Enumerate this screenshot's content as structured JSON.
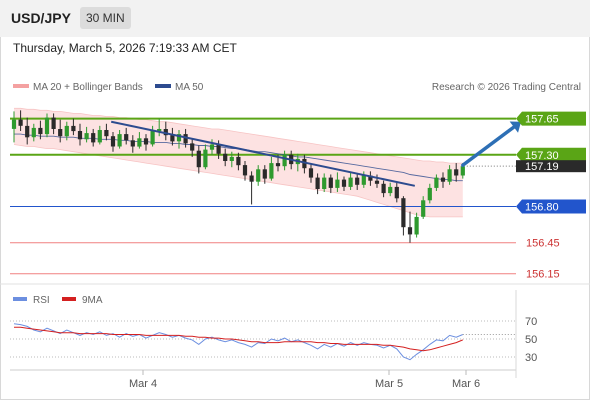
{
  "header": {
    "symbol": "USD/JPY",
    "timeframe": "30 MIN",
    "timestamp": "Thursday, March 5, 2026 7:19:33 AM CET"
  },
  "credit": "Research © 2026 Trading Central",
  "colors": {
    "bull": "#2e9a2e",
    "bear": "#2a2a2a",
    "ma20": "#f4a1a1",
    "ma50": "#2d4b8f",
    "band": "#fde2e2",
    "resistance": "#5aa516",
    "pivot": "#2255cc",
    "support": "#f08080",
    "arrow": "#2d6fb5",
    "rsi": "#6c8fe0",
    "rsi_ma": "#d42020"
  },
  "chart_data": [
    {
      "type": "candlestick",
      "legend": [
        {
          "name": "MA 20 + Bollinger Bands",
          "color": "#f4a1a1"
        },
        {
          "name": "MA 50",
          "color": "#2d4b8f"
        }
      ],
      "ylim": [
        156.07,
        157.83
      ],
      "x_labels": [
        "Mar 4",
        "Mar 5",
        "Mar 6"
      ],
      "last_price": "157.19",
      "levels": [
        {
          "value": 157.65,
          "label": "157.65",
          "kind": "resistance"
        },
        {
          "value": 157.3,
          "label": "157.30",
          "kind": "resistance"
        },
        {
          "value": 156.8,
          "label": "156.80",
          "kind": "pivot"
        },
        {
          "value": 156.45,
          "label": "156.45",
          "kind": "support"
        },
        {
          "value": 156.15,
          "label": "156.15",
          "kind": "support"
        }
      ],
      "candles": [
        [
          157.55,
          157.72,
          157.42,
          157.64
        ],
        [
          157.64,
          157.73,
          157.53,
          157.58
        ],
        [
          157.58,
          157.66,
          157.4,
          157.47
        ],
        [
          157.47,
          157.6,
          157.43,
          157.56
        ],
        [
          157.56,
          157.63,
          157.45,
          157.5
        ],
        [
          157.5,
          157.7,
          157.47,
          157.66
        ],
        [
          157.66,
          157.7,
          157.5,
          157.55
        ],
        [
          157.55,
          157.64,
          157.42,
          157.48
        ],
        [
          157.48,
          157.62,
          157.44,
          157.58
        ],
        [
          157.58,
          157.65,
          157.49,
          157.53
        ],
        [
          157.53,
          157.6,
          157.39,
          157.45
        ],
        [
          157.45,
          157.57,
          157.42,
          157.51
        ],
        [
          157.51,
          157.55,
          157.38,
          157.42
        ],
        [
          157.42,
          157.58,
          157.4,
          157.54
        ],
        [
          157.54,
          157.6,
          157.44,
          157.48
        ],
        [
          157.48,
          157.52,
          157.33,
          157.38
        ],
        [
          157.38,
          157.54,
          157.36,
          157.5
        ],
        [
          157.5,
          157.56,
          157.4,
          157.44
        ],
        [
          157.44,
          157.49,
          157.32,
          157.38
        ],
        [
          157.38,
          157.52,
          157.36,
          157.46
        ],
        [
          157.46,
          157.5,
          157.34,
          157.4
        ],
        [
          157.4,
          157.58,
          157.38,
          157.53
        ],
        [
          157.53,
          157.65,
          157.48,
          157.55
        ],
        [
          157.55,
          157.62,
          157.44,
          157.49
        ],
        [
          157.49,
          157.56,
          157.39,
          157.43
        ],
        [
          157.43,
          157.54,
          157.36,
          157.5
        ],
        [
          157.5,
          157.55,
          157.37,
          157.41
        ],
        [
          157.41,
          157.46,
          157.28,
          157.34
        ],
        [
          157.34,
          157.39,
          157.12,
          157.18
        ],
        [
          157.18,
          157.4,
          157.16,
          157.35
        ],
        [
          157.35,
          157.45,
          157.3,
          157.4
        ],
        [
          157.4,
          157.44,
          157.26,
          157.31
        ],
        [
          157.31,
          157.36,
          157.19,
          157.24
        ],
        [
          157.24,
          157.33,
          157.18,
          157.28
        ],
        [
          157.28,
          157.32,
          157.15,
          157.2
        ],
        [
          157.2,
          157.24,
          157.05,
          157.1
        ],
        [
          157.1,
          157.14,
          156.82,
          157.04
        ],
        [
          157.04,
          157.2,
          157.0,
          157.16
        ],
        [
          157.16,
          157.2,
          157.02,
          157.07
        ],
        [
          157.07,
          157.28,
          157.05,
          157.22
        ],
        [
          157.22,
          157.3,
          157.14,
          157.19
        ],
        [
          157.19,
          157.34,
          157.15,
          157.3
        ],
        [
          157.3,
          157.34,
          157.16,
          157.21
        ],
        [
          157.21,
          157.31,
          157.14,
          157.26
        ],
        [
          157.26,
          157.3,
          157.12,
          157.17
        ],
        [
          157.17,
          157.21,
          157.03,
          157.08
        ],
        [
          157.08,
          157.12,
          156.92,
          156.97
        ],
        [
          156.97,
          157.12,
          156.94,
          157.08
        ],
        [
          157.08,
          157.11,
          156.93,
          156.98
        ],
        [
          156.98,
          157.13,
          156.94,
          157.06
        ],
        [
          157.06,
          157.09,
          156.95,
          156.99
        ],
        [
          156.99,
          157.13,
          156.96,
          157.08
        ],
        [
          157.08,
          157.12,
          156.96,
          157.01
        ],
        [
          157.01,
          157.14,
          156.98,
          157.1
        ],
        [
          157.1,
          157.14,
          157.0,
          157.05
        ],
        [
          157.05,
          157.11,
          156.98,
          157.02
        ],
        [
          157.02,
          157.05,
          156.89,
          156.93
        ],
        [
          156.93,
          157.03,
          156.9,
          156.99
        ],
        [
          156.99,
          157.03,
          156.84,
          156.88
        ],
        [
          156.88,
          156.9,
          156.52,
          156.6
        ],
        [
          156.6,
          156.75,
          156.45,
          156.53
        ],
        [
          156.53,
          156.74,
          156.5,
          156.7
        ],
        [
          156.7,
          156.9,
          156.68,
          156.86
        ],
        [
          156.86,
          157.02,
          156.83,
          156.98
        ],
        [
          156.98,
          157.11,
          156.95,
          157.08
        ],
        [
          157.08,
          157.13,
          156.98,
          157.04
        ],
        [
          157.04,
          157.2,
          157.01,
          157.16
        ],
        [
          157.16,
          157.22,
          157.04,
          157.1
        ],
        [
          157.1,
          157.22,
          157.07,
          157.19
        ]
      ],
      "ma50": [
        157.5,
        157.5,
        157.49,
        157.49,
        157.48,
        157.48,
        157.48,
        157.47,
        157.47,
        157.47,
        157.46,
        157.46,
        157.46,
        157.45,
        157.45,
        157.45,
        157.44,
        157.44,
        157.43,
        157.43,
        157.43,
        157.42,
        157.42,
        157.42,
        157.41,
        157.41,
        157.4,
        157.4,
        157.39,
        157.39,
        157.38,
        157.38,
        157.37,
        157.36,
        157.36,
        157.35,
        157.34,
        157.33,
        157.33,
        157.32,
        157.31,
        157.3,
        157.29,
        157.28,
        157.28,
        157.27,
        157.26,
        157.25,
        157.24,
        157.23,
        157.22,
        157.21,
        157.2,
        157.19,
        157.18,
        157.17,
        157.16,
        157.15,
        157.14,
        157.13,
        157.11,
        157.1,
        157.09,
        157.08,
        157.07,
        157.06,
        157.06,
        157.05,
        157.05
      ],
      "bb_upper": [
        157.75,
        157.75,
        157.74,
        157.74,
        157.73,
        157.73,
        157.72,
        157.72,
        157.71,
        157.7,
        157.7,
        157.69,
        157.68,
        157.68,
        157.67,
        157.67,
        157.66,
        157.66,
        157.65,
        157.64,
        157.64,
        157.63,
        157.62,
        157.62,
        157.61,
        157.6,
        157.59,
        157.58,
        157.57,
        157.56,
        157.55,
        157.55,
        157.54,
        157.53,
        157.52,
        157.51,
        157.5,
        157.49,
        157.48,
        157.47,
        157.46,
        157.45,
        157.44,
        157.43,
        157.42,
        157.41,
        157.4,
        157.39,
        157.38,
        157.37,
        157.36,
        157.35,
        157.34,
        157.33,
        157.32,
        157.31,
        157.3,
        157.29,
        157.28,
        157.27,
        157.26,
        157.25,
        157.24,
        157.24,
        157.23,
        157.23,
        157.22,
        157.22,
        157.22
      ],
      "bb_lower": [
        157.4,
        157.39,
        157.38,
        157.38,
        157.37,
        157.36,
        157.36,
        157.35,
        157.34,
        157.33,
        157.32,
        157.31,
        157.3,
        157.29,
        157.28,
        157.27,
        157.26,
        157.25,
        157.24,
        157.23,
        157.22,
        157.21,
        157.2,
        157.19,
        157.18,
        157.17,
        157.16,
        157.15,
        157.14,
        157.13,
        157.12,
        157.11,
        157.1,
        157.09,
        157.08,
        157.07,
        157.06,
        157.05,
        157.04,
        157.03,
        157.02,
        157.01,
        157.0,
        156.99,
        156.98,
        156.97,
        156.96,
        156.95,
        156.94,
        156.93,
        156.92,
        156.91,
        156.9,
        156.88,
        156.86,
        156.84,
        156.82,
        156.8,
        156.78,
        156.76,
        156.74,
        156.72,
        156.71,
        156.7,
        156.7,
        156.7,
        156.7,
        156.7,
        156.7
      ],
      "trendline": {
        "from": [
          0.2,
          157.62
        ],
        "to": [
          0.8,
          157.0
        ]
      },
      "forecast_arrow": {
        "from": [
          0.895,
          157.2
        ],
        "to": [
          1.01,
          157.62
        ]
      }
    },
    {
      "type": "line",
      "legend": [
        {
          "name": "RSI",
          "color": "#6c8fe0"
        },
        {
          "name": "9MA",
          "color": "#d42020"
        }
      ],
      "ylim": [
        20,
        80
      ],
      "yticks": [
        70,
        50,
        30
      ],
      "dotted_levels": [
        70,
        50,
        30
      ],
      "rsi": [
        67,
        66,
        64,
        60,
        58,
        62,
        59,
        56,
        60,
        57,
        54,
        57,
        55,
        58,
        54,
        56,
        52,
        56,
        53,
        55,
        51,
        54,
        57,
        55,
        52,
        54,
        51,
        49,
        44,
        50,
        52,
        49,
        47,
        49,
        46,
        44,
        41,
        46,
        45,
        50,
        48,
        51,
        47,
        49,
        46,
        43,
        39,
        44,
        41,
        45,
        42,
        46,
        43,
        46,
        44,
        43,
        40,
        43,
        39,
        30,
        27,
        33,
        38,
        44,
        49,
        48,
        54,
        52,
        55
      ],
      "rsi_ma": [
        63,
        63,
        62,
        61,
        60,
        59,
        58,
        57,
        57,
        57,
        56,
        56,
        56,
        56,
        56,
        55,
        55,
        55,
        55,
        55,
        54,
        54,
        54,
        54,
        54,
        54,
        53,
        53,
        52,
        52,
        51,
        51,
        50,
        50,
        49,
        48,
        47,
        47,
        46,
        46,
        46,
        47,
        47,
        47,
        47,
        47,
        46,
        46,
        45,
        45,
        44,
        44,
        44,
        44,
        44,
        44,
        43,
        43,
        42,
        41,
        39,
        38,
        37,
        38,
        40,
        42,
        44,
        46,
        49
      ]
    }
  ]
}
